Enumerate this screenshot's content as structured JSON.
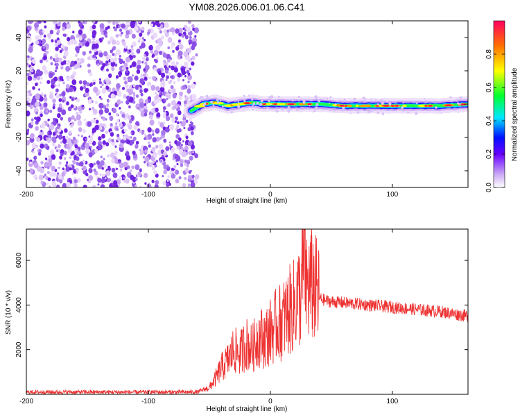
{
  "title": "YM08.2026.006.01.06.C41",
  "chart_data": [
    {
      "type": "heatmap",
      "xlabel": "Height of straight line (km)",
      "ylabel": "Frequency (Hz)",
      "xlim": [
        -200,
        162
      ],
      "ylim": [
        -50,
        50
      ],
      "xticks": [
        -200,
        -100,
        0,
        100
      ],
      "yticks": [
        -40,
        -20,
        0,
        20,
        40
      ],
      "colorbar": {
        "label": "Normalized spectral amplitude",
        "range": [
          0,
          1
        ],
        "ticks": [
          "0.0",
          "0.2",
          "0.4",
          "0.6",
          "0.8"
        ]
      },
      "noise_region_x": [
        -200,
        -60
      ],
      "signal_trace": {
        "x": [
          -65,
          -55,
          -45,
          -35,
          -25,
          -15,
          -5,
          5,
          20,
          40,
          60,
          80,
          100,
          120,
          140,
          162
        ],
        "freq_hz": [
          -4,
          0,
          1,
          -1,
          0,
          1,
          0,
          0,
          0,
          0,
          -1,
          -1,
          -1,
          -1,
          -1,
          0
        ]
      }
    },
    {
      "type": "line",
      "xlabel": "Height of straight line (km)",
      "ylabel": "SNR (10 * v/v)",
      "xlim": [
        -200,
        162
      ],
      "ylim": [
        0,
        7400
      ],
      "xticks": [
        -200,
        -100,
        0,
        100
      ],
      "yticks": [
        2000,
        4000,
        6000
      ],
      "color": "#ee3333",
      "series": [
        {
          "x": [
            -200,
            -150,
            -100,
            -60,
            -50,
            -45,
            -40,
            -35,
            -30,
            -25,
            -20,
            -15,
            -10,
            -5,
            0,
            5,
            10,
            15,
            20,
            25,
            28,
            30,
            35,
            40,
            45,
            50,
            60,
            80,
            100,
            120,
            140,
            162
          ],
          "values": [
            100,
            100,
            100,
            100,
            300,
            700,
            1200,
            1500,
            2000,
            1800,
            2300,
            2000,
            2600,
            2500,
            2800,
            3100,
            3300,
            3700,
            4000,
            4600,
            6000,
            4800,
            4900,
            4300,
            4200,
            4150,
            4100,
            4000,
            3900,
            3800,
            3700,
            3500
          ]
        }
      ]
    }
  ]
}
